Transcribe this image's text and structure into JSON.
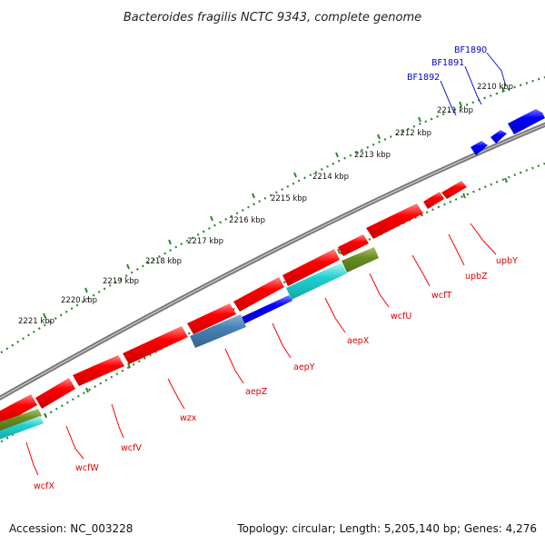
{
  "title": "Bacteroides fragilis NCTC 9343, complete genome",
  "footer": {
    "accession": "Accession: NC_003228",
    "topology": "Topology: circular; Length: 5,205,140 bp; Genes: 4,276"
  },
  "colors": {
    "backbone": "#7a7a7a",
    "tick": "#2a8a2a",
    "gene_red": "#ff0000",
    "gene_blue": "#0000ff",
    "gene_cyan": "#20d0d0",
    "gene_steel": "#4682b4",
    "gene_olive": "#6b8e23",
    "label_red": "#e00000",
    "label_blue": "#0000cc"
  },
  "tick_labels": [
    "2210 kbp",
    "2211 kbp",
    "2212 kbp",
    "2213 kbp",
    "2214 kbp",
    "2215 kbp",
    "2216 kbp",
    "2217 kbp",
    "2218 kbp",
    "2219 kbp",
    "2220 kbp",
    "2221 kbp"
  ],
  "top_labels": [
    "BF1890",
    "BF1891",
    "BF1892"
  ],
  "bottom_labels": [
    "upbY",
    "upbZ",
    "wcfT",
    "wcfU",
    "aepX",
    "aepY",
    "aepZ",
    "wzx",
    "wcfV",
    "wcfW",
    "wcfX"
  ]
}
